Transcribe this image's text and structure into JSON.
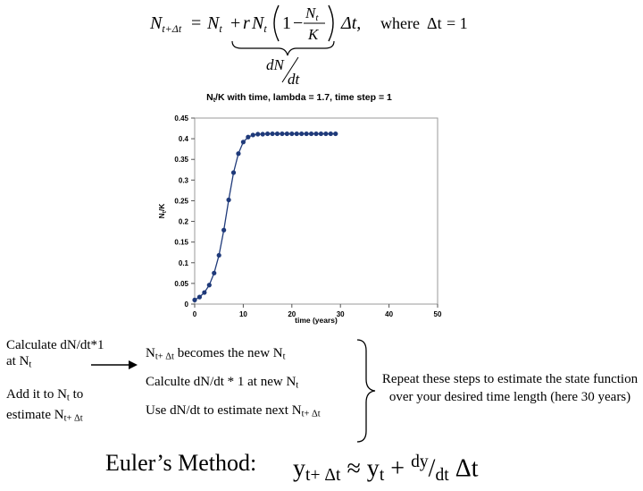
{
  "formula": {
    "lhs_base": "N",
    "lhs_sub": "t+Δt",
    "eq1": "=",
    "nt_base": "N",
    "nt_sub": "t",
    "plus_r": "+",
    "r": "r",
    "nt2_base": "N",
    "nt2_sub": "t",
    "one": "1",
    "minus": "−",
    "frac_num_base": "N",
    "frac_num_sub": "t",
    "frac_den": "K",
    "delta_t": "Δt,",
    "where_label": "where",
    "where_delta": "Δt",
    "where_eq": "= 1",
    "brace_num": "dN",
    "brace_den": "dt"
  },
  "chart_data": {
    "type": "scatter",
    "title": "N",
    "title_sub": "t",
    "title_rest": "/K with time, lambda = 1.7, time step = 1",
    "xlabel": "time (years)",
    "ylabel": "N",
    "ylabel_sub": "t",
    "ylabel_rest": "/K",
    "xlim": [
      0,
      50
    ],
    "ylim": [
      0,
      0.45
    ],
    "xticks": [
      "0",
      "10",
      "20",
      "30",
      "40",
      "50"
    ],
    "yticks": [
      "0",
      "0.05",
      "0.1",
      "0.15",
      "0.2",
      "0.25",
      "0.3",
      "0.35",
      "0.4",
      "0.45"
    ],
    "series_color": "#1f3a7a",
    "grid": false,
    "x": [
      0,
      1,
      2,
      3,
      4,
      5,
      6,
      7,
      8,
      9,
      10,
      11,
      12,
      13,
      14,
      15,
      16,
      17,
      18,
      19,
      20,
      21,
      22,
      23,
      24,
      25,
      26,
      27,
      28,
      29
    ],
    "y": [
      0.01,
      0.017,
      0.028,
      0.046,
      0.075,
      0.118,
      0.179,
      0.252,
      0.318,
      0.364,
      0.392,
      0.404,
      0.409,
      0.411,
      0.411,
      0.412,
      0.412,
      0.412,
      0.412,
      0.412,
      0.412,
      0.412,
      0.412,
      0.412,
      0.412,
      0.412,
      0.412,
      0.412,
      0.412,
      0.412
    ]
  },
  "steps": {
    "calc_line1": "Calculate dN/dt*1",
    "calc_line2_base": "at N",
    "calc_line2_sub": "t",
    "add_line1_a": "Add it to N",
    "add_line1_sub": "t",
    "add_line1_b": " to",
    "add_line2_a": "estimate N",
    "add_line2_sub": "t+ Δt",
    "list1_a": "N",
    "list1_sub": "t+ Δt",
    "list1_b": " becomes the new N",
    "list1_sub2": "t",
    "list2_a": "Calculte dN/dt * 1 at new N",
    "list2_sub": "t",
    "list3_a": "Use dN/dt to estimate next N",
    "list3_sub": "t+ Δt",
    "repeat_text": "Repeat these steps to estimate the state function over your desired time length (here 30 years)"
  },
  "euler": {
    "label": "Euler’s Method:",
    "y1": "y",
    "y1_sub": "t+ Δt",
    "approx": " ≈ y",
    "y2_sub": "t",
    "plus": " + ",
    "dy": "dy",
    "slash": "/",
    "dt": "dt",
    "delta_t": " Δt"
  }
}
